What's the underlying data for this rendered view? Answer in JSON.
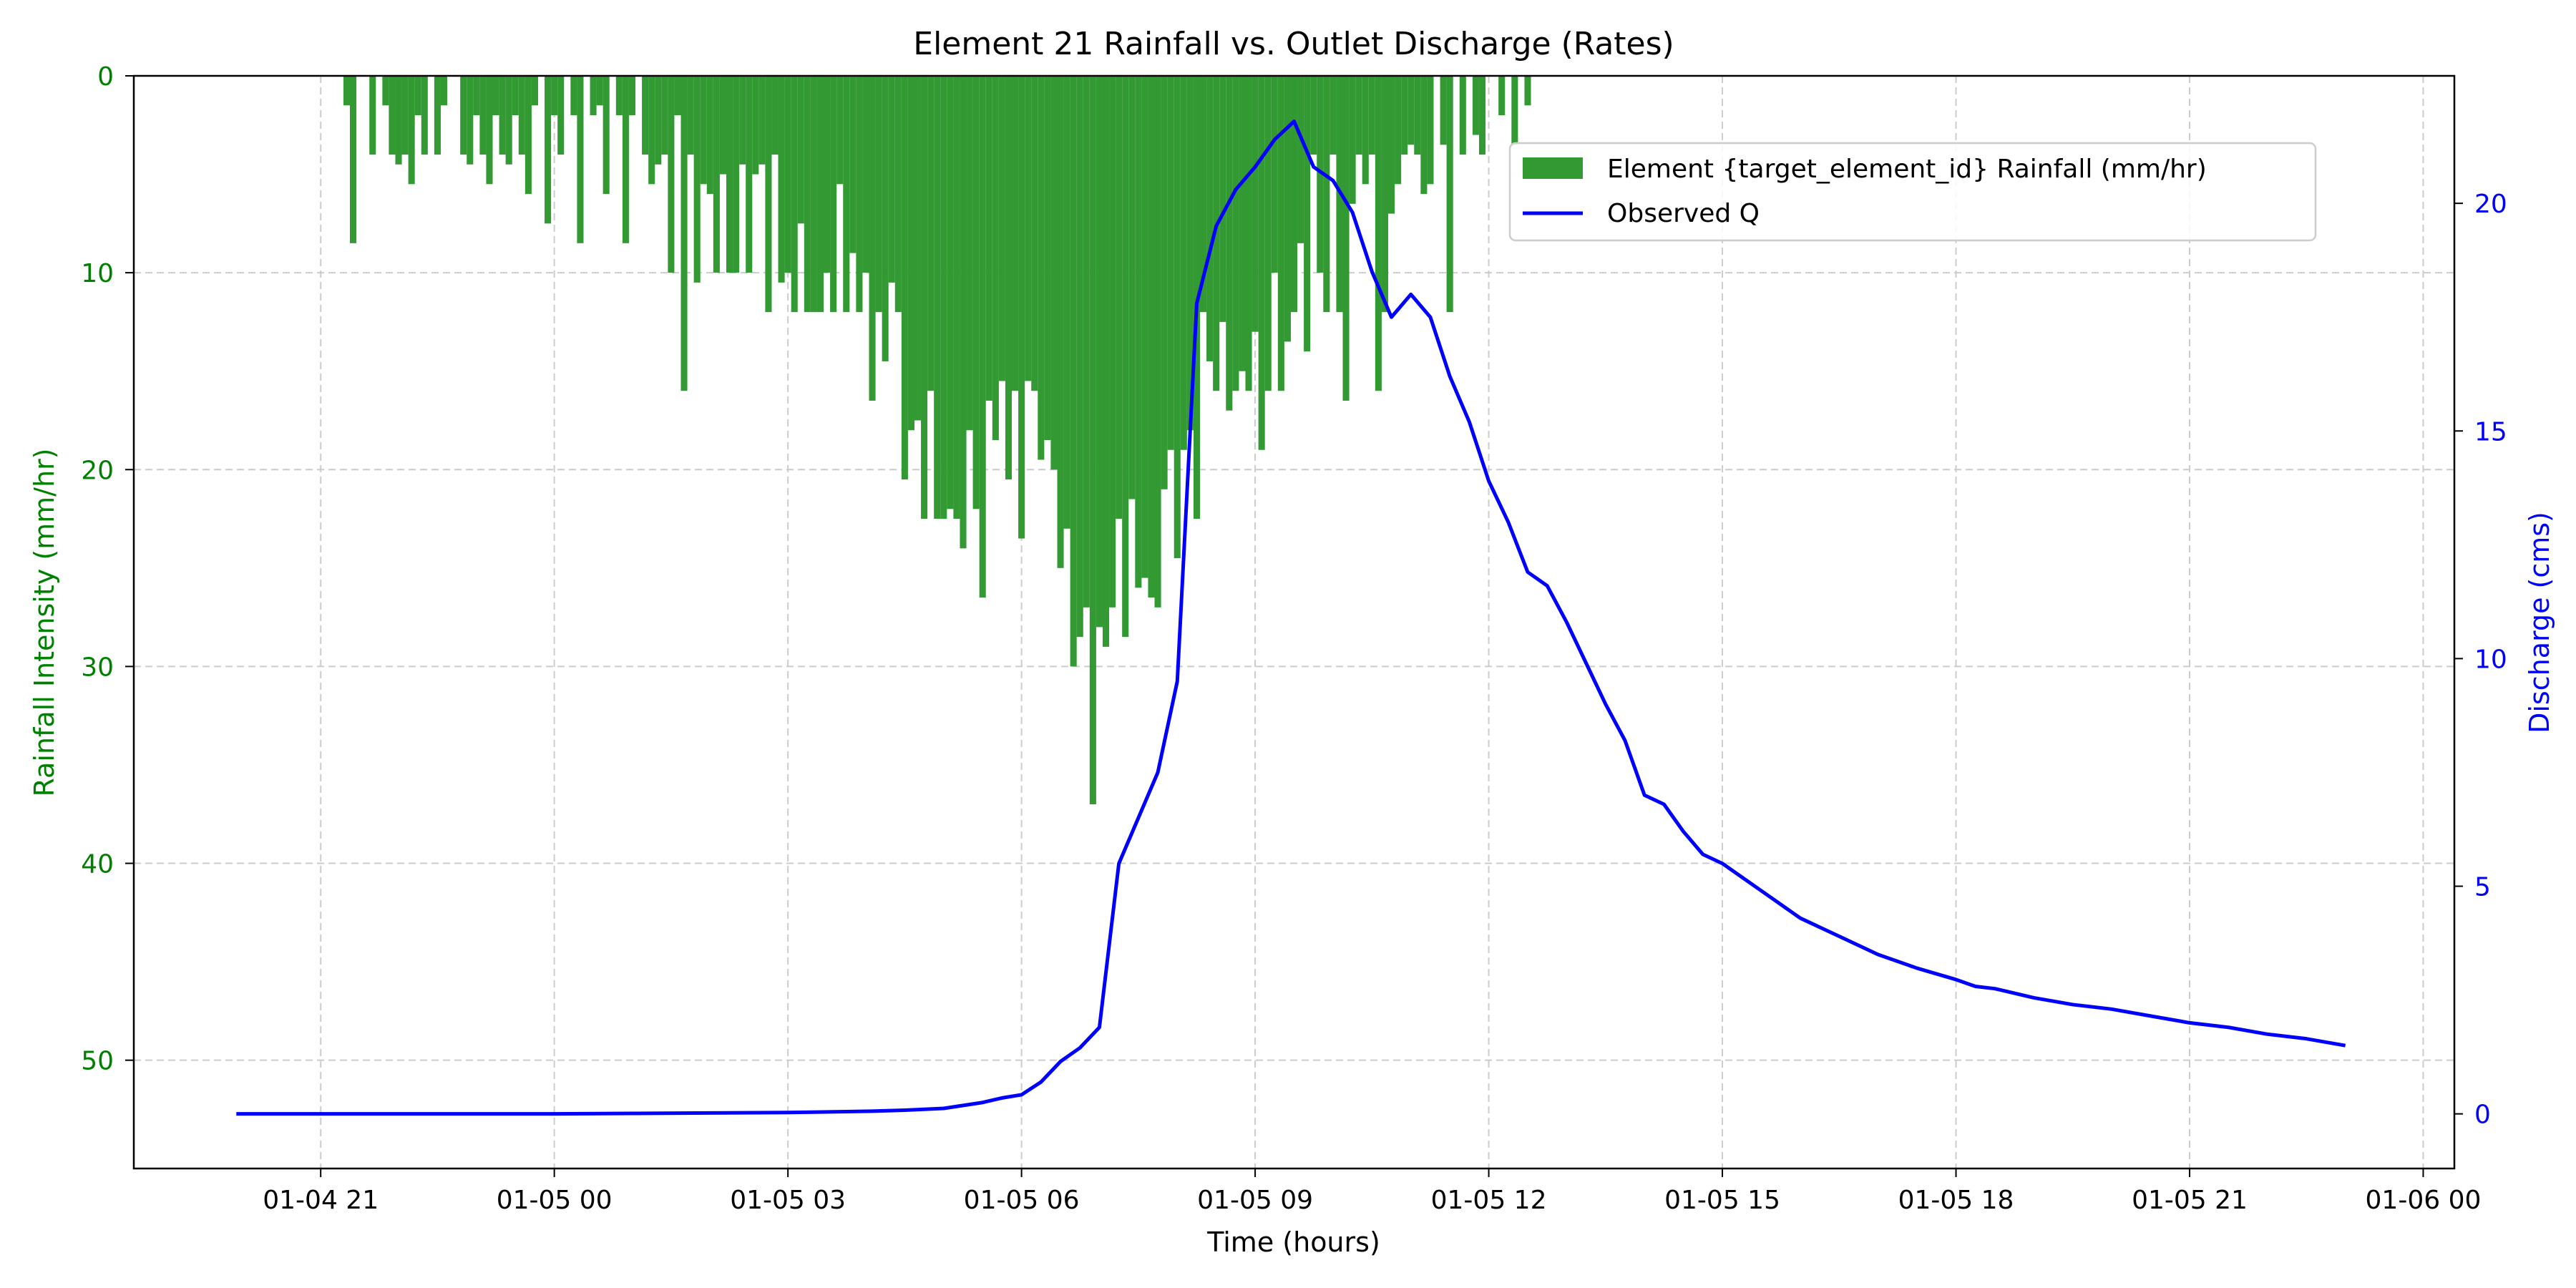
{
  "chart_data": {
    "type": "bar+line",
    "title": "Element 21 Rainfall vs. Outlet Discharge (Rates)",
    "xlabel": "Time (hours)",
    "ylabel_left": "Rainfall Intensity (mm/hr)",
    "ylabel_right": "Discharge (cms)",
    "x_ticks": [
      "01-04 21",
      "01-05 00",
      "01-05 03",
      "01-05 06",
      "01-05 09",
      "01-05 12",
      "01-05 15",
      "01-05 18",
      "01-05 21",
      "01-06 00"
    ],
    "x_range": [
      "01-04 18:36",
      "01-06 00:24"
    ],
    "y_left_range": [
      55.5,
      0
    ],
    "y_left_inverted": true,
    "y_left_ticks": [
      "0",
      "10",
      "20",
      "30",
      "40",
      "50"
    ],
    "y_right_range": [
      -1.2,
      22.8
    ],
    "y_right_ticks": [
      "0",
      "5",
      "10",
      "15",
      "20"
    ],
    "grid": true,
    "legend_position": "upper right",
    "legend": [
      {
        "label": "Element {target_element_id} Rainfall (mm/hr)",
        "kind": "bar",
        "color": "#339933"
      },
      {
        "label": "Observed Q",
        "kind": "line",
        "color": "#0000ff"
      }
    ],
    "colors": {
      "rain": "#339933",
      "discharge": "#0000ff",
      "left_axis": "#008000",
      "right_axis": "#0000ff",
      "grid": "#cccccc"
    },
    "rainfall": {
      "name": "Element {target_element_id} Rainfall (mm/hr)",
      "start": "01-04 21:20",
      "interval_minutes": 5,
      "values": [
        1.5,
        8.5,
        0,
        0,
        4,
        0,
        1.5,
        4,
        4.5,
        4,
        5.5,
        2,
        4,
        0,
        4,
        1.5,
        0,
        0,
        4,
        4.5,
        2,
        4,
        5.5,
        2,
        4,
        4.5,
        2,
        4,
        6,
        1.5,
        0,
        7.5,
        2,
        4,
        0,
        2,
        8.5,
        0,
        2,
        1.5,
        6,
        0,
        2,
        8.5,
        2,
        0,
        4,
        5.5,
        4.5,
        4,
        10,
        2,
        16,
        4,
        10.5,
        5.5,
        6,
        10,
        5,
        10,
        10,
        4.5,
        10,
        5,
        4.5,
        12,
        4,
        10.5,
        10,
        12,
        7.5,
        12,
        12,
        12,
        10,
        12,
        5.5,
        12,
        9,
        12,
        10,
        16.5,
        12,
        14.5,
        10.5,
        12,
        20.5,
        18,
        17.5,
        22.5,
        16,
        22.5,
        22.5,
        22,
        22.5,
        24,
        18,
        22,
        26.5,
        16.5,
        18.5,
        15.5,
        20.5,
        16,
        23.5,
        15.5,
        16,
        19.5,
        18.5,
        20,
        25,
        23,
        30,
        28.5,
        27,
        37,
        28,
        29,
        27,
        22.5,
        28.5,
        21.5,
        26,
        25.5,
        26.5,
        27,
        21,
        19,
        24.5,
        19,
        18,
        22.5,
        12,
        14.5,
        16,
        12.5,
        17,
        16,
        15,
        16,
        13,
        19,
        16,
        10,
        16,
        13.5,
        12,
        8.5,
        14,
        4,
        10,
        12,
        4,
        12,
        16.5,
        6.5,
        4,
        5.5,
        4,
        16,
        12,
        7,
        5.5,
        4,
        3.5,
        4,
        6,
        5.5,
        0,
        3.5,
        12,
        0,
        4,
        0,
        3,
        4,
        0,
        0,
        2,
        0,
        3.5,
        0,
        1.5
      ]
    },
    "discharge": {
      "name": "Observed Q",
      "x": [
        "01-04 19:55",
        "01-04 21:00",
        "01-04 22:00",
        "01-04 23:00",
        "01-05 00:00",
        "01-05 01:00",
        "01-05 02:00",
        "01-05 03:00",
        "01-05 03:45",
        "01-05 04:05",
        "01-05 04:30",
        "01-05 05:00",
        "01-05 05:30",
        "01-05 05:45",
        "01-05 06:00",
        "01-05 06:15",
        "01-05 06:30",
        "01-05 06:45",
        "01-05 07:00",
        "01-05 07:15",
        "01-05 07:30",
        "01-05 07:45",
        "01-05 08:00",
        "01-05 08:15",
        "01-05 08:30",
        "01-05 08:45",
        "01-05 09:00",
        "01-05 09:15",
        "01-05 09:30",
        "01-05 09:45",
        "01-05 10:00",
        "01-05 10:15",
        "01-05 10:30",
        "01-05 10:45",
        "01-05 11:00",
        "01-05 11:15",
        "01-05 11:30",
        "01-05 11:45",
        "01-05 12:00",
        "01-05 12:15",
        "01-05 12:30",
        "01-05 12:45",
        "01-05 13:00",
        "01-05 13:15",
        "01-05 13:30",
        "01-05 13:45",
        "01-05 14:00",
        "01-05 14:15",
        "01-05 14:30",
        "01-05 14:45",
        "01-05 15:00",
        "01-05 15:15",
        "01-05 15:30",
        "01-05 15:45",
        "01-05 16:00",
        "01-05 16:30",
        "01-05 17:00",
        "01-05 17:30",
        "01-05 18:00",
        "01-05 18:15",
        "01-05 18:30",
        "01-05 19:00",
        "01-05 19:30",
        "01-05 20:00",
        "01-05 20:30",
        "01-05 21:00",
        "01-05 21:30",
        "01-05 22:00",
        "01-05 22:30",
        "01-05 23:00"
      ],
      "values": [
        0.0,
        0.0,
        0.0,
        0.0,
        0.0,
        0.01,
        0.02,
        0.03,
        0.05,
        0.06,
        0.08,
        0.12,
        0.25,
        0.35,
        0.42,
        0.7,
        1.15,
        1.45,
        1.9,
        5.5,
        6.5,
        7.5,
        9.5,
        17.8,
        19.5,
        20.3,
        20.8,
        21.4,
        21.8,
        20.8,
        20.5,
        19.8,
        18.5,
        17.5,
        18.0,
        17.5,
        16.2,
        15.2,
        13.9,
        13.0,
        11.9,
        11.6,
        10.8,
        9.9,
        9.0,
        8.2,
        7.0,
        6.8,
        6.2,
        5.7,
        5.5,
        5.2,
        4.9,
        4.6,
        4.3,
        3.9,
        3.5,
        3.2,
        2.95,
        2.8,
        2.75,
        2.55,
        2.4,
        2.3,
        2.15,
        2.0,
        1.9,
        1.75,
        1.65,
        1.5
      ]
    }
  }
}
